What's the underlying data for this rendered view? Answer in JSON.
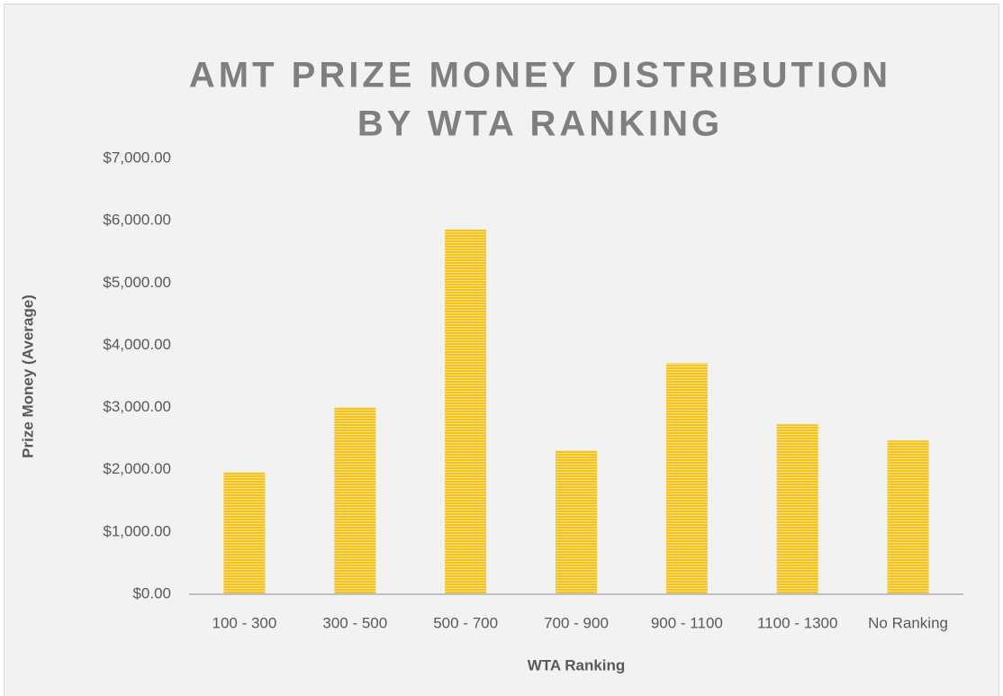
{
  "chart_data": {
    "type": "bar",
    "title": [
      "AMT PRIZE MONEY DISTRIBUTION",
      "BY WTA RANKING"
    ],
    "x_label": "WTA Ranking",
    "y_label": "Prize Money (Average)",
    "categories": [
      "100 - 300",
      "300 - 500",
      "500 - 700",
      "700 - 900",
      "900 - 1100",
      "1100 - 1300",
      "No Ranking"
    ],
    "values": [
      1960,
      3000,
      5860,
      2310,
      3710,
      2730,
      2470
    ],
    "color": "#f7c21b",
    "ylim": [
      0,
      7000
    ],
    "yticks": [
      {
        "value": 0,
        "label": "$0.00"
      },
      {
        "value": 1000,
        "label": "$1,000.00"
      },
      {
        "value": 2000,
        "label": "$2,000.00"
      },
      {
        "value": 3000,
        "label": "$3,000.00"
      },
      {
        "value": 4000,
        "label": "$4,000.00"
      },
      {
        "value": 5000,
        "label": "$5,000.00"
      },
      {
        "value": 6000,
        "label": "$6,000.00"
      },
      {
        "value": 7000,
        "label": "$7,000.00"
      }
    ],
    "grid": false
  }
}
